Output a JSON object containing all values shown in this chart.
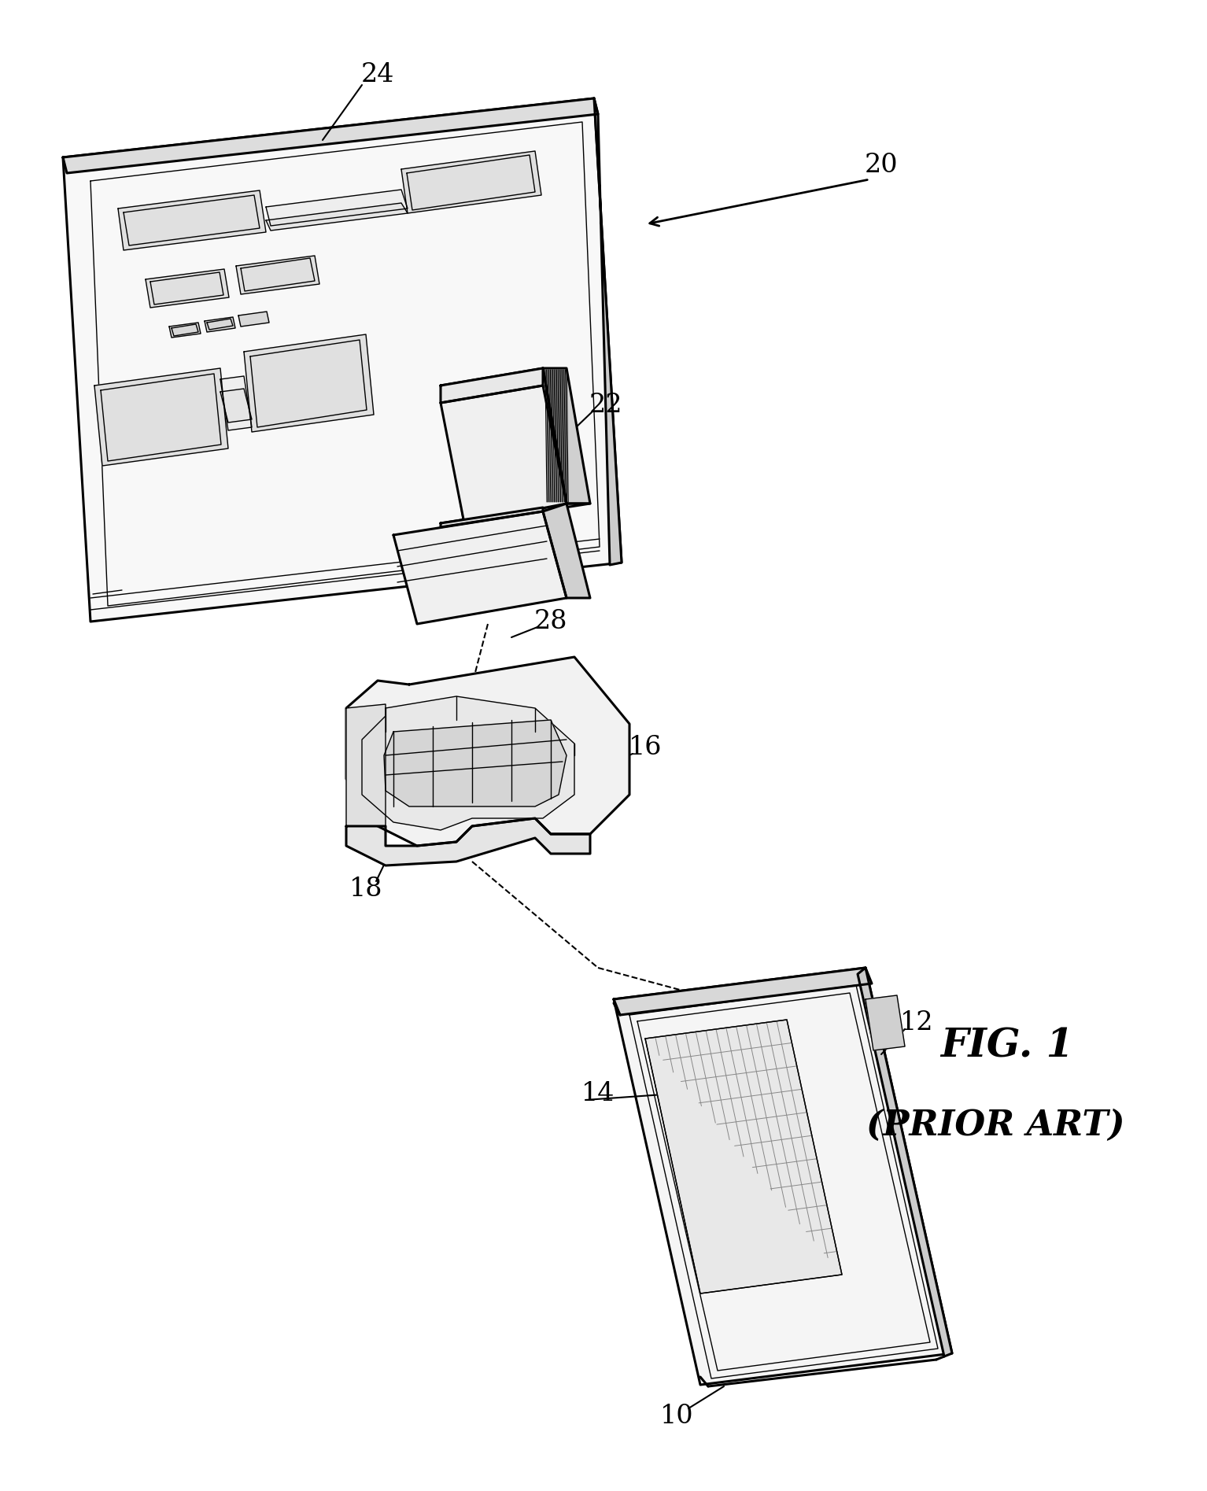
{
  "bg_color": "#ffffff",
  "line_color": "#000000",
  "fig_label": "FIG. 1",
  "fig_sublabel": "(PRIOR ART)",
  "lw_main": 2.2,
  "lw_med": 1.5,
  "lw_thin": 1.0
}
